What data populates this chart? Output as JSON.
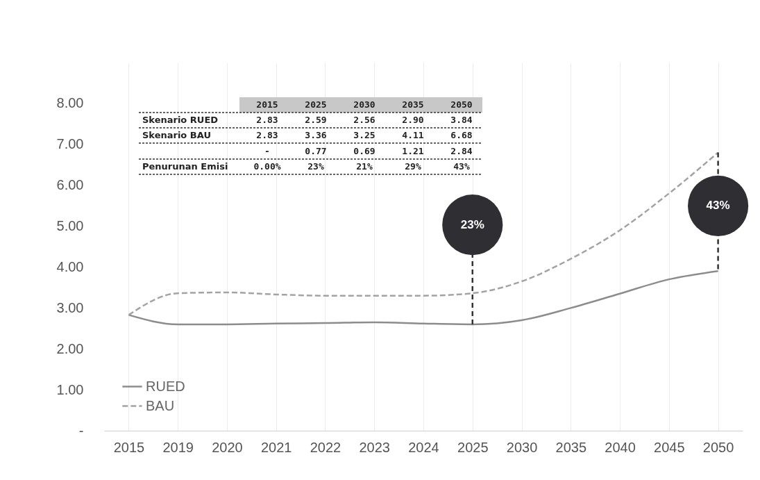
{
  "chart_data": {
    "type": "line",
    "categories": [
      "2015",
      "2019",
      "2020",
      "2021",
      "2022",
      "2023",
      "2024",
      "2025",
      "2030",
      "2035",
      "2040",
      "2045",
      "2050"
    ],
    "series": [
      {
        "name": "RUED",
        "color": "#8c8c8c",
        "line_style": "solid",
        "values": [
          2.83,
          2.6,
          2.6,
          2.62,
          2.63,
          2.65,
          2.62,
          2.6,
          2.7,
          3.0,
          3.35,
          3.7,
          3.9
        ]
      },
      {
        "name": "BAU",
        "color": "#a3a3a3",
        "line_style": "dashed",
        "values": [
          2.83,
          3.36,
          3.38,
          3.33,
          3.3,
          3.3,
          3.3,
          3.36,
          3.65,
          4.2,
          4.9,
          5.8,
          6.8
        ]
      }
    ],
    "ylim": [
      0,
      9
    ],
    "yticks": [
      {
        "value": 0,
        "label": "-"
      },
      {
        "value": 1,
        "label": "1.00"
      },
      {
        "value": 2,
        "label": "2.00"
      },
      {
        "value": 3,
        "label": "3.00"
      },
      {
        "value": 4,
        "label": "4.00"
      },
      {
        "value": 5,
        "label": "5.00"
      },
      {
        "value": 6,
        "label": "6.00"
      },
      {
        "value": 7,
        "label": "7.00"
      },
      {
        "value": 8,
        "label": "8.00"
      }
    ],
    "grid": "x",
    "legend": "bottom left",
    "marker": "none",
    "annotations": [
      {
        "text": "23%",
        "x": "2025",
        "y": 2.6
      },
      {
        "text": "43%",
        "x": "2050",
        "y": 6.8
      },
      "2015",
      "2025",
      "2030",
      "2035",
      "2050",
      "Skenario RUED",
      "2.83",
      "2.59",
      "2.56",
      "2.90",
      "3.84",
      "Skenario BAU",
      "2.83",
      "3.36",
      "3.25",
      "4.11",
      "6.68",
      "-",
      "0.77",
      "0.69",
      "1.21",
      "2.84",
      "Penurunan Emisi",
      "0.00%",
      "23%",
      "21%",
      "29%",
      "43%"
    ]
  }
}
